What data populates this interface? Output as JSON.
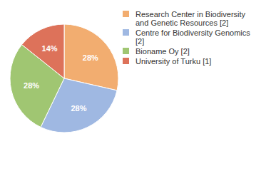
{
  "chart_data": {
    "type": "pie",
    "categories": [
      "Research Center in Biodiversity and Genetic Resources [2]",
      "Centre for Biodiversity Genomics [2]",
      "Bioname Oy [2]",
      "University of Turku [1]"
    ],
    "values": [
      28,
      28,
      28,
      14
    ],
    "value_labels": [
      "28%",
      "28%",
      "28%",
      "14%"
    ],
    "colors": [
      "#f2ad70",
      "#9fb8e2",
      "#a0c672",
      "#dd725a"
    ],
    "data_labels": true,
    "legend": "right"
  }
}
